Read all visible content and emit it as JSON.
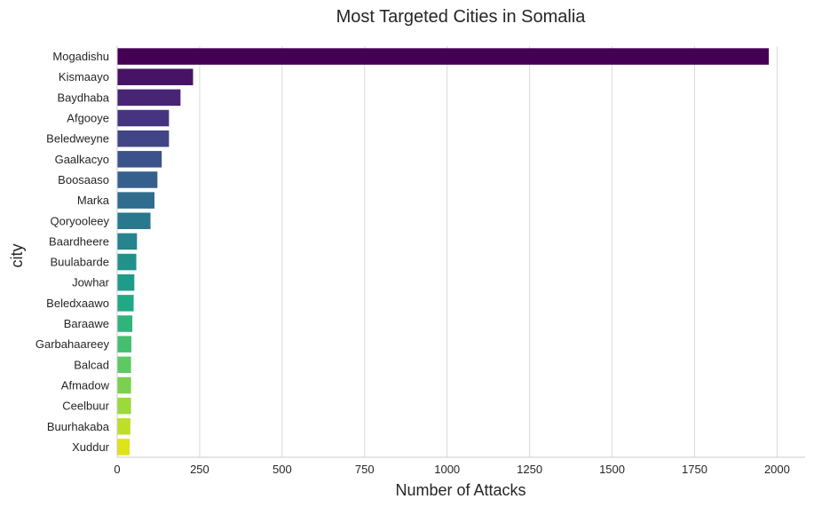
{
  "chart_data": {
    "type": "bar",
    "orientation": "horizontal",
    "title": "Most Targeted Cities in Somalia",
    "xlabel": "Number of Attacks",
    "ylabel": "city",
    "xlim": [
      0,
      2085
    ],
    "xticks": [
      0,
      250,
      500,
      750,
      1000,
      1250,
      1500,
      1750,
      2000
    ],
    "grid": "vertical",
    "palette": "viridis",
    "categories": [
      "Mogadishu",
      "Kismaayo",
      "Baydhaba",
      "Afgooye",
      "Beledweyne",
      "Gaalkacyo",
      "Boosaaso",
      "Marka",
      "Qoryooleey",
      "Baardheere",
      "Buulabarde",
      "Jowhar",
      "Beledxaawo",
      "Baraawe",
      "Garbahaareey",
      "Balcad",
      "Afmadow",
      "Ceelbuur",
      "Buurhakaba",
      "Xuddur"
    ],
    "values": [
      1975,
      230,
      192,
      157,
      157,
      135,
      122,
      113,
      101,
      60,
      58,
      52,
      50,
      46,
      43,
      42,
      42,
      42,
      40,
      38
    ],
    "colors": [
      "#440154",
      "#481a6c",
      "#472f7d",
      "#414487",
      "#39568c",
      "#31688e",
      "#2a788e",
      "#23888e",
      "#1f988b",
      "#22a884",
      "#35b779",
      "#54c568",
      "#7ad151",
      "#a5db36",
      "#d2e21b",
      "#3e5f8e",
      "#2c9a8a",
      "#1fa187",
      "#4ac16d",
      "#bddf26"
    ],
    "note_colors": ""
  }
}
